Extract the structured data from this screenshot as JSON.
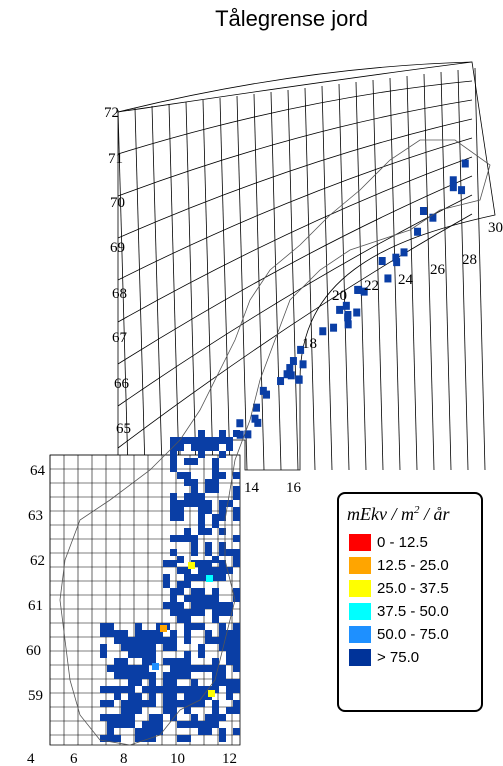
{
  "title": "Tålegrense jord",
  "latitudes": [
    "72",
    "71",
    "70",
    "69",
    "68",
    "67",
    "66",
    "65",
    "64",
    "63",
    "62",
    "61",
    "60",
    "59"
  ],
  "longitudes": [
    "4",
    "6",
    "8",
    "10",
    "12",
    "14",
    "16",
    "18",
    "20",
    "22",
    "24",
    "26",
    "28",
    "30"
  ],
  "legend": {
    "title_main": "mEkv / m",
    "title_sup": "2",
    "title_tail": " / år",
    "items": [
      {
        "label": "0 - 12.5",
        "color": "#ff0000"
      },
      {
        "label": "12.5 - 25.0",
        "color": "#ffa500"
      },
      {
        "label": "25.0 - 37.5",
        "color": "#ffff00"
      },
      {
        "label": "37.5 - 50.0",
        "color": "#00ffff"
      },
      {
        "label": "50.0 - 75.0",
        "color": "#1e90ff"
      },
      {
        "label": "> 75.0",
        "color": "#003399"
      }
    ]
  },
  "colors": {
    "grid": "#000000",
    "land_fill": "#0a3ea5",
    "coast": "#555555"
  }
}
